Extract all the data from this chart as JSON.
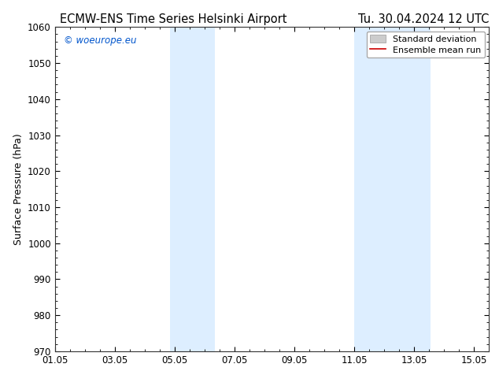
{
  "title_left": "ECMW-ENS Time Series Helsinki Airport",
  "title_right": "Tu. 30.04.2024 12 UTC",
  "ylabel": "Surface Pressure (hPa)",
  "ylim": [
    970,
    1060
  ],
  "yticks": [
    970,
    980,
    990,
    1000,
    1010,
    1020,
    1030,
    1040,
    1050,
    1060
  ],
  "xtick_labels": [
    "01.05",
    "03.05",
    "05.05",
    "07.05",
    "09.05",
    "11.05",
    "13.05",
    "15.05"
  ],
  "xtick_positions": [
    0,
    2,
    4,
    6,
    8,
    10,
    12,
    14
  ],
  "xlim": [
    0,
    14.5
  ],
  "shaded_regions": [
    {
      "start": 3.85,
      "end": 4.5
    },
    {
      "start": 4.5,
      "end": 5.35
    },
    {
      "start": 10.0,
      "end": 11.0
    },
    {
      "start": 11.0,
      "end": 12.55
    }
  ],
  "shaded_color": "#ddeeff",
  "watermark_text": "© woeurope.eu",
  "watermark_color": "#0055cc",
  "legend_items": [
    {
      "label": "Standard deviation",
      "color": "#cccccc",
      "type": "patch"
    },
    {
      "label": "Ensemble mean run",
      "color": "#cc0000",
      "type": "line"
    }
  ],
  "background_color": "#ffffff",
  "title_fontsize": 10.5,
  "axis_label_fontsize": 9,
  "tick_fontsize": 8.5,
  "watermark_fontsize": 8.5
}
